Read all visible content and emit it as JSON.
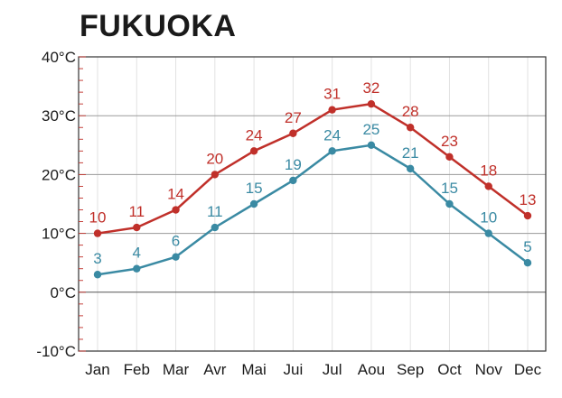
{
  "chart_data": {
    "type": "line",
    "title": "FUKUOKA",
    "categories": [
      "Jan",
      "Feb",
      "Mar",
      "Avr",
      "Mai",
      "Jui",
      "Jul",
      "Aou",
      "Sep",
      "Oct",
      "Nov",
      "Dec"
    ],
    "series": [
      {
        "values": [
          10,
          11,
          14,
          20,
          24,
          27,
          31,
          32,
          28,
          23,
          18,
          13
        ],
        "color": "#c0302a"
      },
      {
        "values": [
          3,
          4,
          6,
          11,
          15,
          19,
          24,
          25,
          21,
          15,
          10,
          5
        ],
        "color": "#3a8aa3"
      }
    ],
    "y_ticks": [
      "-10°C",
      "0°C",
      "10°C",
      "20°C",
      "30°C",
      "40°C"
    ],
    "ylim": [
      -10,
      40
    ],
    "grid": true,
    "legend": "none"
  }
}
